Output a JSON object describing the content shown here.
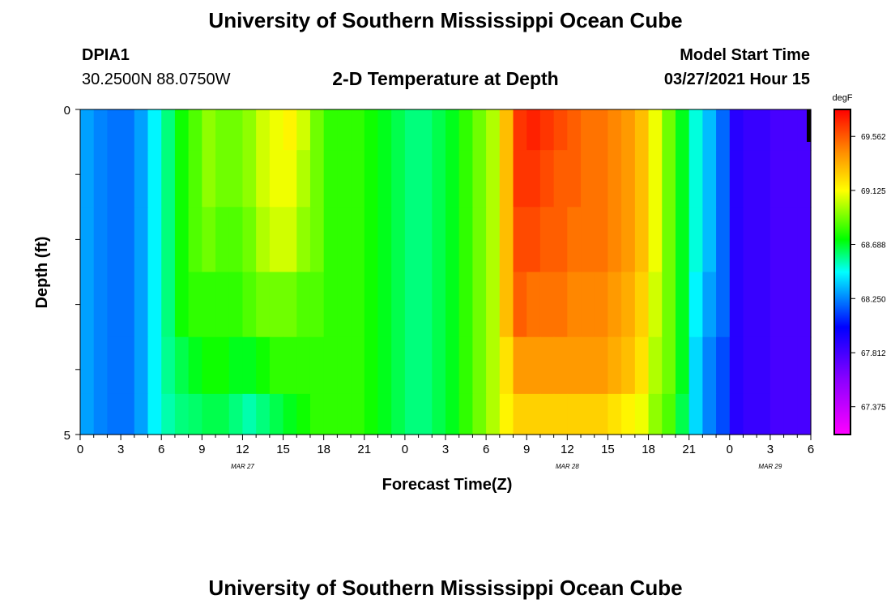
{
  "header": {
    "title": "University of Southern Mississippi Ocean Cube",
    "station": "DPIA1",
    "coords": "30.2500N  88.0750W",
    "plot_title": "2-D Temperature at Depth",
    "model_start_label": "Model Start Time",
    "model_start_value": "03/27/2021 Hour 15"
  },
  "footer": {
    "title": "University of Southern Mississippi Ocean Cube"
  },
  "chart_data": {
    "type": "heatmap",
    "title": "2-D Temperature at Depth",
    "xlabel": "Forecast Time(Z)",
    "ylabel": "Depth (ft)",
    "y_ticks": [
      "0",
      "5"
    ],
    "ylim": [
      0,
      5
    ],
    "xlim": [
      0,
      54
    ],
    "x_tick_labels": [
      "0",
      "3",
      "6",
      "9",
      "12",
      "15",
      "18",
      "21",
      "0",
      "3",
      "6",
      "9",
      "12",
      "15",
      "18",
      "21",
      "0",
      "3",
      "6"
    ],
    "date_labels": [
      {
        "text": "MAR 27",
        "at_hour": 12
      },
      {
        "text": "MAR 28",
        "at_hour": 36
      },
      {
        "text": "MAR 29",
        "at_hour": 51
      }
    ],
    "colorbar": {
      "unit": "degF",
      "tick_labels": [
        "69.562",
        "69.125",
        "68.688",
        "68.250",
        "67.812",
        "67.375"
      ],
      "range": [
        67.15,
        69.78
      ]
    },
    "depth_rows": [
      0.25,
      1.0,
      2.0,
      3.0,
      4.0,
      4.75
    ],
    "hours": [
      0,
      1,
      2,
      3,
      4,
      5,
      6,
      7,
      8,
      9,
      10,
      11,
      12,
      13,
      14,
      15,
      16,
      17,
      18,
      19,
      20,
      21,
      22,
      23,
      24,
      25,
      26,
      27,
      28,
      29,
      30,
      31,
      32,
      33,
      34,
      35,
      36,
      37,
      38,
      39,
      40,
      41,
      42,
      43,
      44,
      45,
      46,
      47,
      48,
      49,
      50,
      51,
      52,
      53
    ],
    "values": [
      [
        68.3,
        68.25,
        68.22,
        68.22,
        68.3,
        68.45,
        68.6,
        68.75,
        68.85,
        68.95,
        68.9,
        68.9,
        68.95,
        69.05,
        69.1,
        69.15,
        69.05,
        68.9,
        68.8,
        68.8,
        68.8,
        68.75,
        68.7,
        68.65,
        68.6,
        68.6,
        68.65,
        68.7,
        68.8,
        68.9,
        69.0,
        69.3,
        69.65,
        69.7,
        69.65,
        69.6,
        69.55,
        69.5,
        69.5,
        69.45,
        69.4,
        69.3,
        69.1,
        68.9,
        68.7,
        68.5,
        68.35,
        68.2,
        67.9,
        67.85,
        67.85,
        67.8,
        67.8,
        67.8
      ],
      [
        68.3,
        68.25,
        68.22,
        68.22,
        68.3,
        68.45,
        68.6,
        68.75,
        68.85,
        68.95,
        68.9,
        68.9,
        68.95,
        69.05,
        69.1,
        69.1,
        69.0,
        68.9,
        68.8,
        68.8,
        68.8,
        68.75,
        68.7,
        68.65,
        68.6,
        68.6,
        68.65,
        68.7,
        68.8,
        68.9,
        69.0,
        69.3,
        69.65,
        69.65,
        69.6,
        69.55,
        69.55,
        69.5,
        69.5,
        69.45,
        69.4,
        69.3,
        69.1,
        68.9,
        68.7,
        68.5,
        68.35,
        68.2,
        67.9,
        67.85,
        67.85,
        67.8,
        67.8,
        67.8
      ],
      [
        68.3,
        68.25,
        68.22,
        68.22,
        68.3,
        68.45,
        68.6,
        68.75,
        68.85,
        68.9,
        68.85,
        68.85,
        68.9,
        69.0,
        69.05,
        69.05,
        68.95,
        68.9,
        68.8,
        68.8,
        68.8,
        68.75,
        68.7,
        68.65,
        68.6,
        68.6,
        68.65,
        68.7,
        68.8,
        68.9,
        69.0,
        69.3,
        69.6,
        69.6,
        69.55,
        69.55,
        69.5,
        69.5,
        69.5,
        69.45,
        69.4,
        69.3,
        69.1,
        68.9,
        68.7,
        68.5,
        68.35,
        68.2,
        67.9,
        67.85,
        67.85,
        67.8,
        67.8,
        67.8
      ],
      [
        68.3,
        68.25,
        68.22,
        68.22,
        68.3,
        68.45,
        68.6,
        68.75,
        68.8,
        68.8,
        68.8,
        68.8,
        68.85,
        68.9,
        68.9,
        68.9,
        68.85,
        68.85,
        68.8,
        68.8,
        68.8,
        68.75,
        68.7,
        68.65,
        68.6,
        68.6,
        68.65,
        68.7,
        68.8,
        68.9,
        69.0,
        69.3,
        69.55,
        69.5,
        69.5,
        69.5,
        69.45,
        69.45,
        69.45,
        69.4,
        69.35,
        69.25,
        69.05,
        68.9,
        68.7,
        68.45,
        68.3,
        68.2,
        67.9,
        67.85,
        67.85,
        67.8,
        67.8,
        67.8
      ],
      [
        68.3,
        68.25,
        68.22,
        68.22,
        68.3,
        68.45,
        68.58,
        68.65,
        68.7,
        68.75,
        68.75,
        68.7,
        68.7,
        68.75,
        68.8,
        68.8,
        68.8,
        68.8,
        68.8,
        68.8,
        68.8,
        68.75,
        68.7,
        68.65,
        68.6,
        68.6,
        68.65,
        68.7,
        68.8,
        68.9,
        69.0,
        69.2,
        69.4,
        69.4,
        69.4,
        69.4,
        69.4,
        69.4,
        69.4,
        69.35,
        69.3,
        69.2,
        69.0,
        68.9,
        68.7,
        68.4,
        68.25,
        68.15,
        67.9,
        67.85,
        67.85,
        67.8,
        67.8,
        67.8
      ],
      [
        68.3,
        68.25,
        68.22,
        68.22,
        68.3,
        68.45,
        68.55,
        68.6,
        68.62,
        68.65,
        68.65,
        68.6,
        68.55,
        68.6,
        68.65,
        68.7,
        68.75,
        68.8,
        68.8,
        68.8,
        68.8,
        68.75,
        68.7,
        68.65,
        68.6,
        68.6,
        68.65,
        68.7,
        68.8,
        68.9,
        69.0,
        69.15,
        69.25,
        69.25,
        69.25,
        69.25,
        69.25,
        69.25,
        69.25,
        69.2,
        69.15,
        69.1,
        68.95,
        68.85,
        68.65,
        68.4,
        68.25,
        68.15,
        67.9,
        67.85,
        67.85,
        67.8,
        67.8,
        67.8
      ]
    ]
  }
}
